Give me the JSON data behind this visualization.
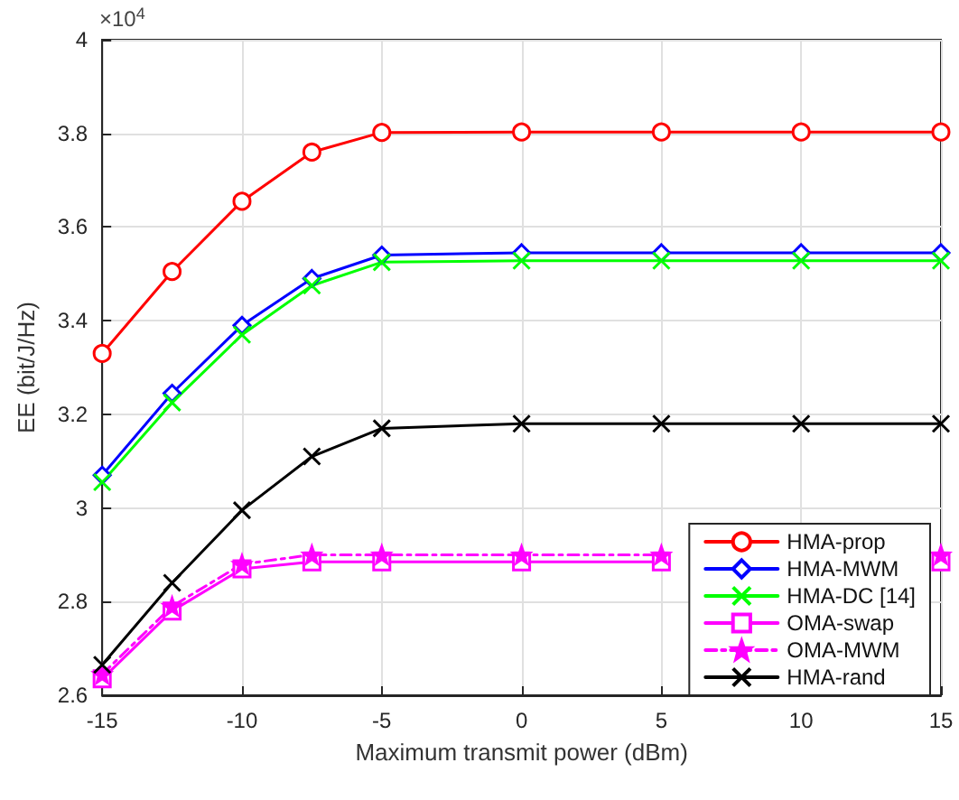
{
  "chart_data": {
    "type": "line",
    "xlabel": "Maximum transmit power (dBm)",
    "ylabel": "EE (bit/J/Hz)",
    "annotations": [
      "×10$^{4}$"
    ],
    "x": [
      -15,
      -12.5,
      -10,
      -7.5,
      -5,
      0,
      5,
      10,
      15
    ],
    "xlim": [
      -15,
      15
    ],
    "xticks": [
      -15,
      -10,
      -5,
      0,
      5,
      10,
      15
    ],
    "ylim": [
      2.6,
      4
    ],
    "yticks": [
      2.6,
      2.8,
      3,
      3.2,
      3.4,
      3.6,
      3.8,
      4
    ],
    "grid": true,
    "legend": "bottom right",
    "series": [
      {
        "name": "HMA-prop",
        "color": "#ff0000",
        "marker": "circle",
        "line_style": "solid",
        "values": [
          3.33,
          3.505,
          3.655,
          3.76,
          3.802,
          3.803,
          3.803,
          3.803,
          3.803
        ]
      },
      {
        "name": "HMA-MWM",
        "color": "#0000ff",
        "marker": "diamond",
        "line_style": "solid",
        "values": [
          3.07,
          3.245,
          3.39,
          3.49,
          3.54,
          3.545,
          3.545,
          3.545,
          3.545
        ]
      },
      {
        "name": "HMA-DC [14]",
        "color": "#00ff00",
        "marker": "cross",
        "line_style": "solid",
        "values": [
          3.055,
          3.225,
          3.37,
          3.475,
          3.525,
          3.528,
          3.528,
          3.528,
          3.528
        ]
      },
      {
        "name": "OMA-swap",
        "color": "#ff00ff",
        "marker": "square",
        "line_style": "solid",
        "values": [
          2.635,
          2.78,
          2.87,
          2.885,
          2.885,
          2.885,
          2.885,
          null,
          2.885
        ]
      },
      {
        "name": "OMA-MWM",
        "color": "#ff00ff",
        "marker": "star",
        "line_style": "dashed",
        "values": [
          2.645,
          2.79,
          2.88,
          2.9,
          2.9,
          2.9,
          2.9,
          null,
          2.9
        ]
      },
      {
        "name": "HMA-rand",
        "color": "#000000",
        "marker": "cross",
        "line_style": "solid",
        "values": [
          2.665,
          2.84,
          2.995,
          3.11,
          3.17,
          3.18,
          3.18,
          3.18,
          3.18
        ]
      }
    ]
  }
}
